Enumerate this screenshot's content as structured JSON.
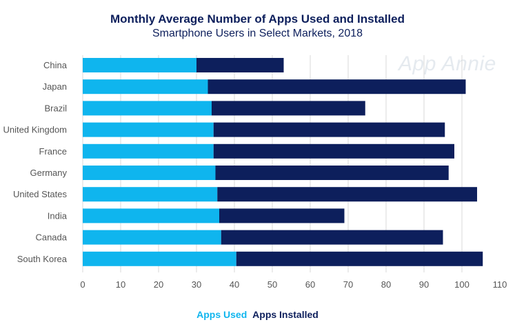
{
  "chart_data": {
    "type": "bar",
    "orientation": "horizontal",
    "stacked": true,
    "title": "Monthly Average Number of Apps Used and Installed",
    "subtitle": "Smartphone Users in Select Markets, 2018",
    "watermark": "App Annie",
    "categories": [
      "China",
      "Japan",
      "Brazil",
      "United Kingdom",
      "France",
      "Germany",
      "United States",
      "India",
      "Canada",
      "South Korea"
    ],
    "series": [
      {
        "name": "Apps Used",
        "color": "#0fb5ee",
        "values": [
          30,
          33,
          34,
          34.5,
          34.5,
          35,
          35.5,
          36,
          36.5,
          40.5
        ]
      },
      {
        "name": "Apps Installed",
        "color": "#0d1f5c",
        "values": [
          23,
          68,
          40.5,
          61,
          63.5,
          61.5,
          68.5,
          33,
          58.5,
          65
        ]
      }
    ],
    "xlim": [
      0,
      110
    ],
    "xticks": [
      "0",
      "10",
      "20",
      "30",
      "40",
      "50",
      "60",
      "70",
      "80",
      "90",
      "100",
      "110"
    ],
    "grid": true,
    "legend_position": "bottom"
  }
}
